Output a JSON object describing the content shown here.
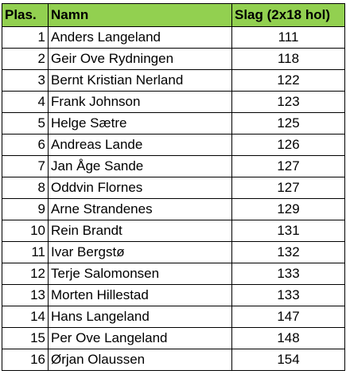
{
  "table": {
    "columns": [
      "Plas.",
      "Namn",
      "Slag (2x18 hol)"
    ],
    "header_color": "#92d050",
    "rows": [
      {
        "place": "1",
        "name": "Anders Langeland",
        "score": "111"
      },
      {
        "place": "2",
        "name": "Geir Ove Rydningen",
        "score": "118"
      },
      {
        "place": "3",
        "name": "Bernt Kristian Nerland",
        "score": "122"
      },
      {
        "place": "4",
        "name": "Frank Johnson",
        "score": "123"
      },
      {
        "place": "5",
        "name": "Helge Sætre",
        "score": "125"
      },
      {
        "place": "6",
        "name": "Andreas Lande",
        "score": "126"
      },
      {
        "place": "7",
        "name": "Jan Åge Sande",
        "score": "127"
      },
      {
        "place": "8",
        "name": "Oddvin Flornes",
        "score": "127"
      },
      {
        "place": "9",
        "name": "Arne Strandenes",
        "score": "129"
      },
      {
        "place": "10",
        "name": "Rein Brandt",
        "score": "131"
      },
      {
        "place": "11",
        "name": "Ivar Bergstø",
        "score": "132"
      },
      {
        "place": "12",
        "name": "Terje Salomonsen",
        "score": "133"
      },
      {
        "place": "13",
        "name": "Morten Hillestad",
        "score": "133"
      },
      {
        "place": "14",
        "name": "Hans Langeland",
        "score": "147"
      },
      {
        "place": "15",
        "name": "Per Ove Langeland",
        "score": "148"
      },
      {
        "place": "16",
        "name": "Ørjan Olaussen",
        "score": "154"
      }
    ]
  }
}
